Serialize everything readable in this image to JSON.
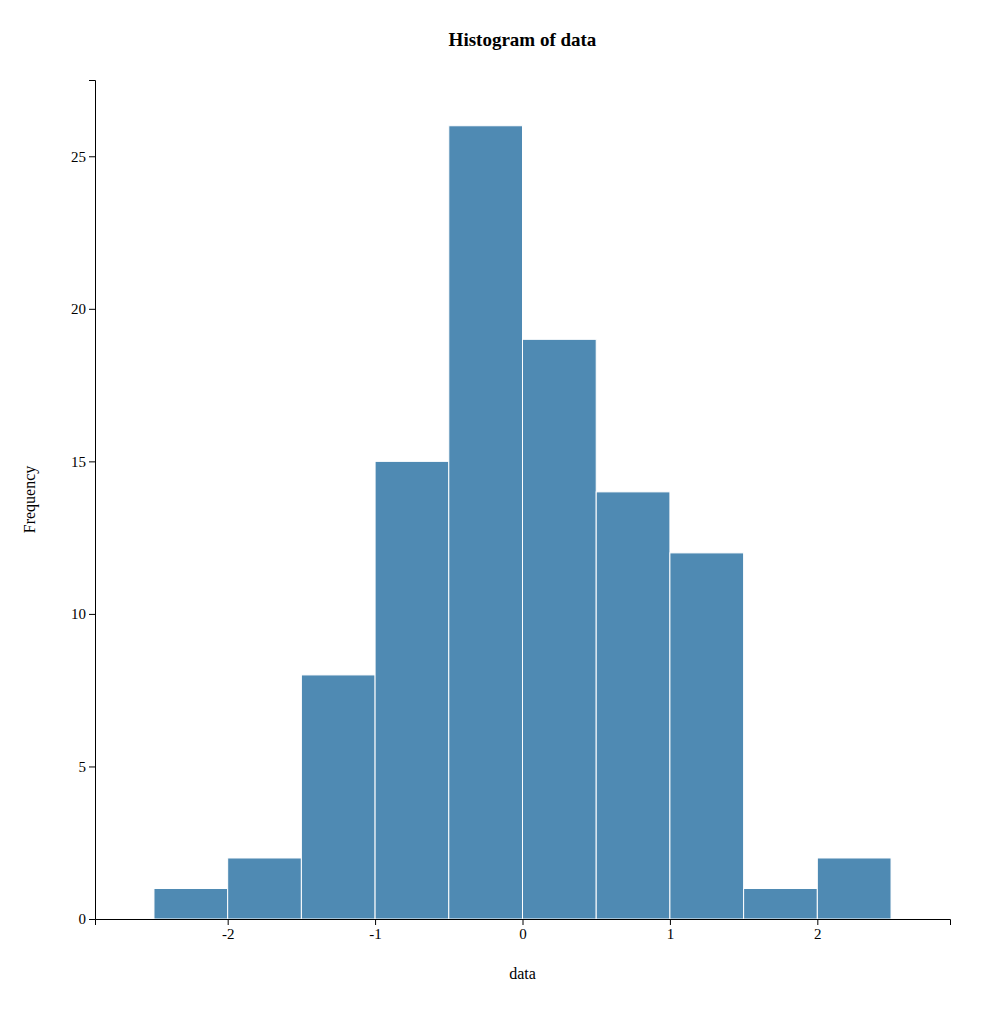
{
  "chart_data": {
    "type": "histogram",
    "title": "Histogram of data",
    "xlabel": "data",
    "ylabel": "Frequency",
    "bins": [
      -2.5,
      -2.0,
      -1.5,
      -1.0,
      -0.5,
      0.0,
      0.5,
      1.0,
      1.5,
      2.0,
      2.5
    ],
    "values": [
      1,
      2,
      8,
      15,
      26,
      19,
      14,
      12,
      1,
      2
    ],
    "color": "#4f8ab3",
    "xlim": [
      -2.9,
      2.9
    ],
    "ylim": [
      0,
      27.5
    ],
    "xticks": [
      -2,
      -1,
      0,
      1,
      2
    ],
    "yticks": [
      0,
      5,
      10,
      15,
      20,
      25
    ],
    "grid": false
  }
}
